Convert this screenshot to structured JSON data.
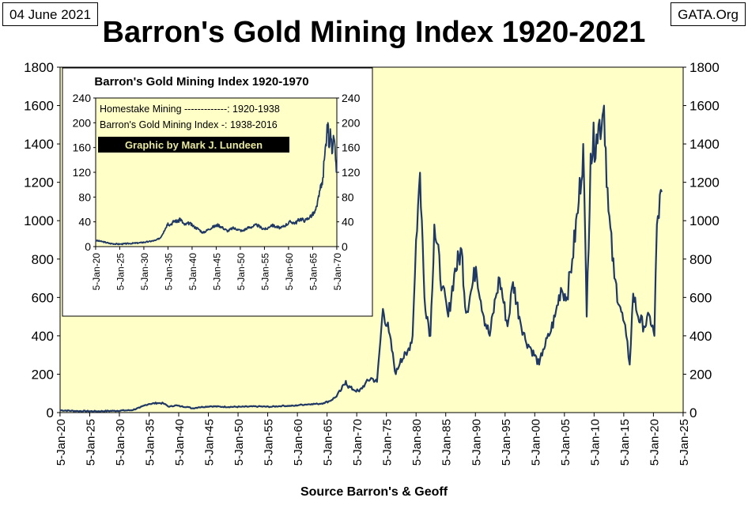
{
  "header": {
    "date": "04 June 2021",
    "source_site": "GATA.Org",
    "title": "Barron's Gold Mining Index 1920-2021"
  },
  "footer": {
    "source": "Source Barron's & Geoff"
  },
  "colors": {
    "background": "#ffffc8",
    "line": "#1f3864",
    "inset_background": "#ffffff",
    "banner": "#000000"
  },
  "chart_data": [
    {
      "type": "line",
      "title": "Barron's Gold Mining Index 1920-2021",
      "xlabel": "Source Barron's & Geoff",
      "ylabel": "",
      "x_tick_labels": [
        "5-Jan-20",
        "5-Jan-25",
        "5-Jan-30",
        "5-Jan-35",
        "5-Jan-40",
        "5-Jan-45",
        "5-Jan-50",
        "5-Jan-55",
        "5-Jan-60",
        "5-Jan-65",
        "5-Jan-70",
        "5-Jan-75",
        "5-Jan-80",
        "5-Jan-85",
        "5-Jan-90",
        "5-Jan-95",
        "5-Jan-00",
        "5-Jan-05",
        "5-Jan-10",
        "5-Jan-15",
        "5-Jan-20",
        "5-Jan-25"
      ],
      "xlim": [
        "1920-01-05",
        "2025-01-05"
      ],
      "ylim": [
        0,
        1800
      ],
      "y_ticks": [
        0,
        200,
        400,
        600,
        800,
        1000,
        1200,
        1400,
        1600,
        1800
      ],
      "grid": false,
      "series": [
        {
          "x": [
            "1920-01",
            "1923-01",
            "1926-01",
            "1929-01",
            "1932-01",
            "1933-06",
            "1934-06",
            "1935-01",
            "1936-06",
            "1937-06",
            "1938-06",
            "1939-06",
            "1940-06",
            "1941-06",
            "1942-04",
            "1943-06",
            "1945-06",
            "1947-06",
            "1950-06",
            "1953-06",
            "1955-06",
            "1957-06",
            "1959-06",
            "1960-06",
            "1961-06",
            "1962-06",
            "1963-06",
            "1964-06",
            "1965-06",
            "1966-06",
            "1967-06",
            "1968-03",
            "1968-06",
            "1969-06",
            "1970-06",
            "1971-06",
            "1972-06",
            "1973-06",
            "1974-01",
            "1974-06",
            "1975-06",
            "1976-08",
            "1977-06",
            "1978-06",
            "1979-06",
            "1980-01",
            "1980-09",
            "1981-06",
            "1982-06",
            "1983-02",
            "1984-06",
            "1985-06",
            "1986-06",
            "1987-09",
            "1988-06",
            "1989-06",
            "1990-02",
            "1991-06",
            "1992-06",
            "1993-06",
            "1994-02",
            "1995-06",
            "1996-05",
            "1997-06",
            "1998-06",
            "1999-06",
            "2000-10",
            "2001-06",
            "2002-06",
            "2003-06",
            "2004-06",
            "2005-06",
            "2006-05",
            "2007-06",
            "2008-03",
            "2008-10",
            "2009-06",
            "2010-06",
            "2011-06",
            "2011-09",
            "2012-06",
            "2013-06",
            "2014-06",
            "2015-06",
            "2016-01",
            "2016-08",
            "2017-06",
            "2018-06",
            "2019-06",
            "2020-03",
            "2020-08",
            "2021-06"
          ],
          "y": [
            12,
            8,
            7,
            9,
            12,
            25,
            40,
            45,
            50,
            48,
            30,
            38,
            32,
            30,
            22,
            28,
            33,
            30,
            30,
            32,
            30,
            35,
            35,
            40,
            42,
            45,
            45,
            50,
            60,
            80,
            120,
            165,
            140,
            120,
            110,
            150,
            180,
            160,
            380,
            540,
            420,
            200,
            280,
            300,
            400,
            900,
            1250,
            600,
            400,
            980,
            650,
            500,
            720,
            850,
            520,
            650,
            760,
            500,
            400,
            600,
            700,
            450,
            680,
            500,
            380,
            330,
            250,
            330,
            400,
            500,
            650,
            600,
            800,
            1100,
            1400,
            500,
            1350,
            1450,
            1550,
            1600,
            1050,
            700,
            550,
            400,
            250,
            620,
            500,
            450,
            500,
            400,
            980,
            1150
          ]
        }
      ]
    },
    {
      "type": "line",
      "title": "Barron's Gold Mining Index 1920-1970",
      "ylim": [
        0,
        240
      ],
      "y_ticks": [
        0,
        40,
        80,
        120,
        160,
        200,
        240
      ],
      "x_tick_labels": [
        "5-Jan-20",
        "5-Jan-25",
        "5-Jan-30",
        "5-Jan-35",
        "5-Jan-40",
        "5-Jan-45",
        "5-Jan-50",
        "5-Jan-55",
        "5-Jan-60",
        "5-Jan-65",
        "5-Jan-70"
      ],
      "xlim": [
        "1920-01-05",
        "1970-01-05"
      ],
      "legend": [
        "Homestake Mining -------------: 1920-1938",
        "Barron's Gold Mining Index -: 1938-2016"
      ],
      "banner": "Graphic by Mark J. Lundeen",
      "series": [
        {
          "x": [
            "1920-01",
            "1921-06",
            "1923-01",
            "1925-01",
            "1927-01",
            "1929-01",
            "1931-01",
            "1932-06",
            "1933-06",
            "1934-03",
            "1935-01",
            "1935-06",
            "1936-06",
            "1937-03",
            "1937-06",
            "1938-06",
            "1939-06",
            "1940-06",
            "1941-06",
            "1942-04",
            "1943-06",
            "1944-06",
            "1945-06",
            "1946-06",
            "1947-06",
            "1948-06",
            "1949-06",
            "1950-06",
            "1951-06",
            "1952-06",
            "1953-06",
            "1954-06",
            "1955-06",
            "1956-06",
            "1957-06",
            "1958-06",
            "1959-06",
            "1960-06",
            "1961-06",
            "1962-06",
            "1963-06",
            "1964-06",
            "1965-06",
            "1965-12",
            "1966-06",
            "1967-01",
            "1967-06",
            "1967-12",
            "1968-03",
            "1968-06",
            "1968-09",
            "1969-01",
            "1969-06",
            "1969-10",
            "1970-01"
          ],
          "y": [
            10,
            8,
            5,
            4,
            5,
            6,
            8,
            10,
            14,
            25,
            38,
            35,
            42,
            40,
            46,
            35,
            38,
            32,
            28,
            22,
            28,
            32,
            35,
            30,
            25,
            30,
            28,
            25,
            30,
            32,
            35,
            30,
            28,
            35,
            32,
            30,
            35,
            40,
            38,
            45,
            42,
            48,
            55,
            65,
            90,
            100,
            140,
            180,
            200,
            160,
            190,
            150,
            175,
            140,
            120
          ]
        }
      ]
    }
  ]
}
